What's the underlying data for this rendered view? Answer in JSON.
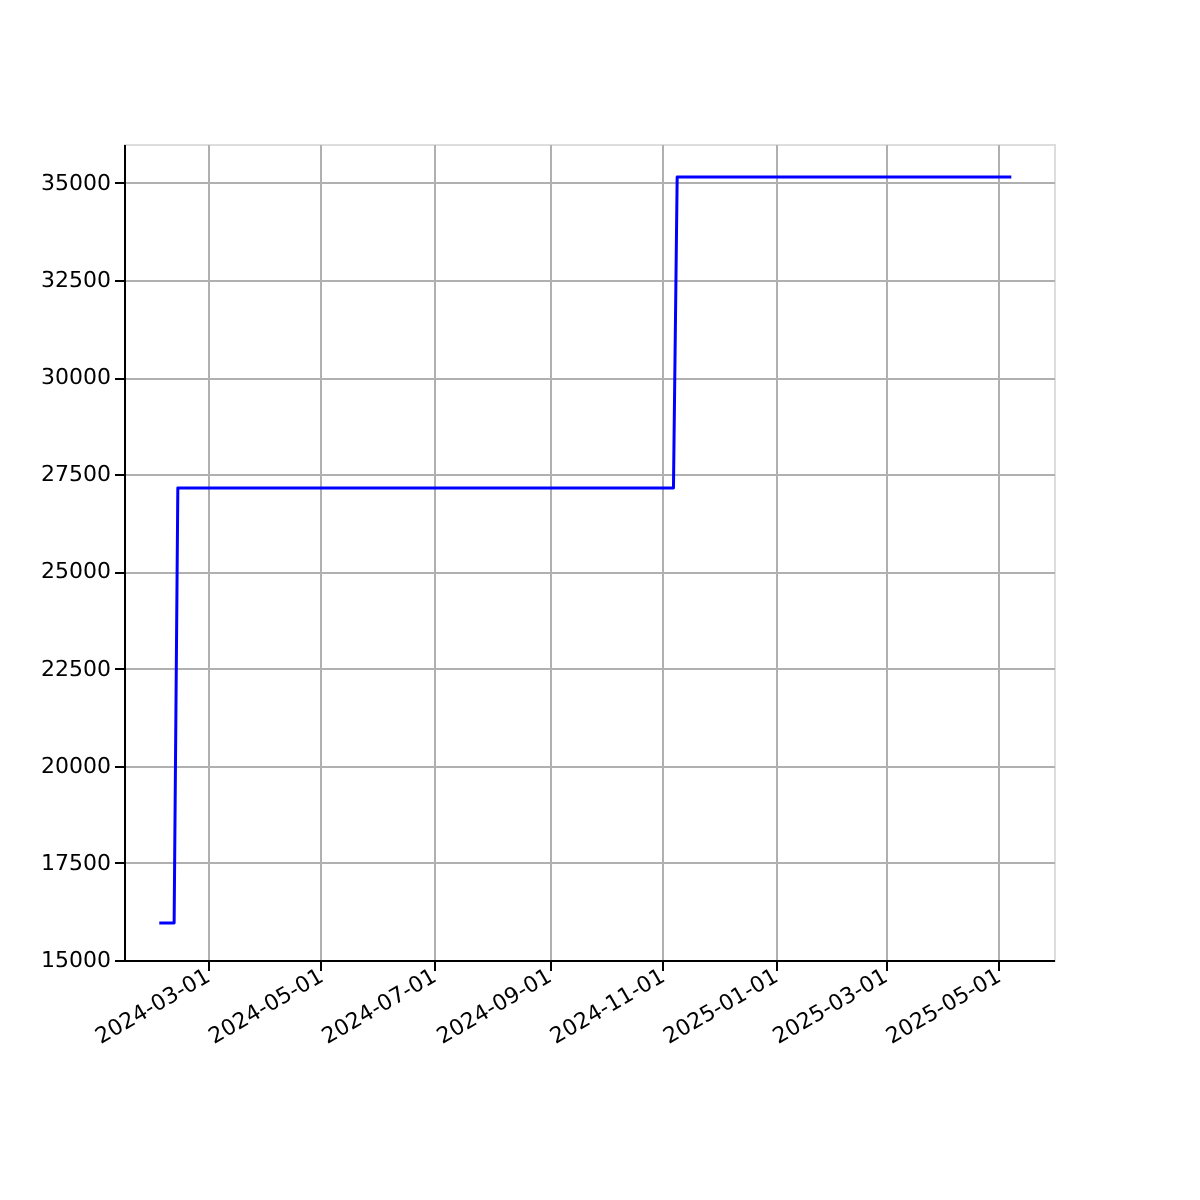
{
  "chart_data": {
    "type": "line",
    "x": [
      "2024-02-04",
      "2024-02-12",
      "2024-02-14",
      "2024-11-07",
      "2024-11-09",
      "2025-05-08"
    ],
    "series": [
      {
        "color": "#0000ff",
        "values": [
          15950,
          15950,
          27150,
          27150,
          35150,
          35150
        ]
      }
    ],
    "xlim": [
      "2024-01-16",
      "2025-05-31"
    ],
    "xticks": [
      "2024-03-01",
      "2024-05-01",
      "2024-07-01",
      "2024-09-01",
      "2024-11-01",
      "2025-01-01",
      "2025-03-01",
      "2025-05-01"
    ],
    "ylim": [
      15000,
      36000
    ],
    "yticks": [
      15000,
      17500,
      20000,
      22500,
      25000,
      27500,
      30000,
      32500,
      35000
    ],
    "grid": true,
    "marker": "none",
    "line_style": "solid"
  }
}
